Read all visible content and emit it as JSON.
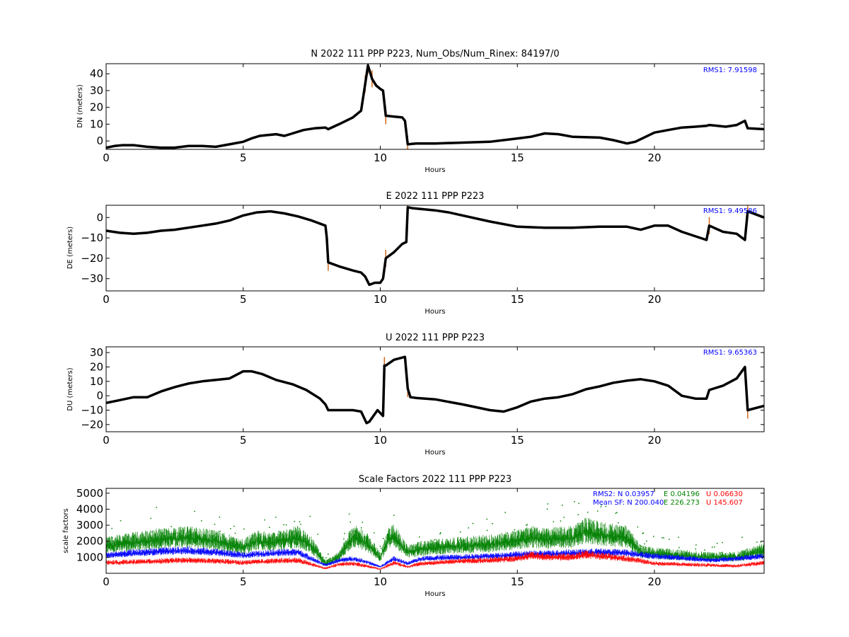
{
  "colors": {
    "data_point": "#000000",
    "outlier": "#d2691e",
    "rms_text": "#0000ff",
    "sf_N": "#0000ff",
    "sf_E": "#008000",
    "sf_U": "#ff0000"
  },
  "chart_data": [
    {
      "type": "scatter",
      "title": "N 2022 111 PPP  P223, Num_Obs/Num_Rinex: 84197/0",
      "xlabel": "Hours",
      "ylabel": "DN (meters)",
      "xlim": [
        0,
        24
      ],
      "ylim": [
        -5,
        46
      ],
      "xticks": [
        0,
        5,
        10,
        15,
        20
      ],
      "yticks": [
        0,
        10,
        20,
        30,
        40
      ],
      "grid": false,
      "annotation": "RMS1:  7.91598",
      "series": [
        {
          "x": [
            0,
            0.3,
            0.6,
            1.0,
            1.5,
            2.0,
            2.5,
            3.0,
            3.5,
            4.0,
            4.5,
            5.0,
            5.3,
            5.6,
            5.9,
            6.2,
            6.5,
            6.8,
            7.2,
            7.6,
            8.0,
            8.1,
            8.5,
            9.0,
            9.3,
            9.45,
            9.55,
            9.7,
            9.85,
            10.0,
            10.1,
            10.2,
            10.5,
            10.8,
            10.9,
            11.0,
            11.3,
            12.0,
            13.0,
            14.0,
            15.0,
            15.5,
            16.0,
            16.5,
            17.0,
            18.0,
            18.5,
            19.0,
            19.3,
            20.0,
            20.5,
            21.0,
            21.5,
            21.9,
            22.0,
            22.3,
            22.6,
            23.0,
            23.3,
            23.4,
            24.0
          ],
          "y": [
            -4,
            -3,
            -2.5,
            -2.5,
            -3.5,
            -4,
            -4,
            -3,
            -3,
            -3.5,
            -2,
            -0.5,
            1.5,
            3,
            3.5,
            4,
            3,
            4.5,
            6.5,
            7.5,
            8,
            7,
            10,
            14,
            18,
            34,
            45,
            37,
            33,
            31,
            30,
            15,
            14.5,
            14,
            12,
            -2,
            -1.5,
            -1.5,
            -1,
            -0.5,
            1.5,
            2.5,
            4.5,
            4,
            2.5,
            2,
            0.5,
            -1.5,
            -0.5,
            5,
            6.5,
            8,
            8.5,
            9,
            9.5,
            9,
            8.5,
            9.5,
            12,
            7.5,
            7
          ]
        }
      ]
    },
    {
      "type": "scatter",
      "title": "E 2022 111 PPP  P223",
      "xlabel": "Hours",
      "ylabel": "DE (meters)",
      "xlim": [
        0,
        24
      ],
      "ylim": [
        -36,
        6
      ],
      "xticks": [
        0,
        5,
        10,
        15,
        20
      ],
      "yticks": [
        -30,
        -20,
        -10,
        0
      ],
      "grid": false,
      "annotation": "RMS1:  9.49586",
      "series": [
        {
          "x": [
            0,
            0.5,
            1.0,
            1.5,
            2.0,
            2.5,
            3.0,
            3.5,
            4.0,
            4.5,
            5.0,
            5.5,
            6.0,
            6.5,
            7.0,
            7.5,
            8.0,
            8.05,
            8.1,
            8.5,
            9.0,
            9.3,
            9.45,
            9.6,
            9.8,
            10.0,
            10.1,
            10.2,
            10.5,
            10.8,
            10.95,
            11.0,
            11.2,
            12.0,
            12.5,
            13.0,
            14.0,
            15.0,
            16.0,
            17.0,
            18.0,
            19.0,
            19.5,
            20.0,
            20.5,
            21.0,
            21.9,
            22.0,
            22.5,
            23.0,
            23.3,
            23.4,
            24.0
          ],
          "y": [
            -6.5,
            -7.5,
            -8,
            -7.5,
            -6.5,
            -6,
            -5,
            -4,
            -3,
            -1.5,
            1,
            2.5,
            3,
            2,
            0.5,
            -1.5,
            -4,
            -10,
            -22,
            -24,
            -26,
            -27,
            -29,
            -33,
            -32,
            -32,
            -30,
            -20,
            -17,
            -13,
            -12,
            5,
            4.5,
            3.5,
            2.5,
            1,
            -2,
            -4.5,
            -5,
            -5,
            -4.5,
            -4.5,
            -6,
            -4,
            -4,
            -7,
            -11,
            -4,
            -7,
            -8,
            -11,
            3,
            0
          ]
        }
      ]
    },
    {
      "type": "scatter",
      "title": "U 2022 111 PPP  P223",
      "xlabel": "Hours",
      "ylabel": "DU (meters)",
      "xlim": [
        0,
        24
      ],
      "ylim": [
        -25,
        34
      ],
      "xticks": [
        0,
        5,
        10,
        15,
        20
      ],
      "yticks": [
        -20,
        -10,
        0,
        10,
        20,
        30
      ],
      "grid": false,
      "annotation": "RMS1:  9.65363",
      "series": [
        {
          "x": [
            0,
            0.5,
            1.0,
            1.5,
            2.0,
            2.5,
            3.0,
            3.5,
            4.0,
            4.5,
            5.0,
            5.3,
            5.7,
            6.2,
            6.8,
            7.3,
            7.8,
            8.0,
            8.1,
            8.5,
            9.0,
            9.3,
            9.5,
            9.6,
            9.9,
            10.0,
            10.1,
            10.15,
            10.2,
            10.5,
            10.9,
            11.0,
            11.1,
            11.3,
            12.0,
            13.0,
            14.0,
            14.5,
            15.0,
            15.5,
            16.0,
            16.5,
            17.0,
            17.5,
            18.0,
            18.5,
            19.0,
            19.5,
            20.0,
            20.5,
            21.0,
            21.5,
            21.9,
            22.0,
            22.5,
            23.0,
            23.3,
            23.4,
            24.0
          ],
          "y": [
            -5,
            -3,
            -1,
            -1,
            3,
            6,
            8.5,
            10,
            11,
            12,
            17,
            17,
            15,
            11,
            8,
            4,
            -2,
            -6,
            -10,
            -10,
            -10,
            -11,
            -19,
            -18,
            -10,
            -12,
            -14,
            21,
            21,
            25,
            27,
            5,
            -1,
            -1.5,
            -2.5,
            -6,
            -10,
            -11,
            -8,
            -4,
            -2,
            -1,
            1,
            4.5,
            6.5,
            9,
            10.5,
            11.5,
            10,
            7,
            0,
            -2,
            -2,
            4,
            7,
            12,
            20,
            -10,
            -7
          ]
        }
      ]
    },
    {
      "type": "scatter",
      "title": "Scale Factors 2022 111 PPP  P223",
      "xlabel": "Hours",
      "ylabel": "scale factors",
      "xlim": [
        0,
        24
      ],
      "ylim": [
        0,
        5300
      ],
      "xticks": [
        0,
        5,
        10,
        15,
        20
      ],
      "yticks": [
        1000,
        2000,
        3000,
        4000,
        5000
      ],
      "grid": false,
      "annotations": {
        "rms2_label": "RMS2: N  0.03957",
        "rms2_e": "E  0.04196",
        "rms2_u": "U  0.06630",
        "meansf_label": "Mean SF: N 200.040",
        "meansf_e": "E 226.273",
        "meansf_u": "U  145.607"
      },
      "series": [
        {
          "name": "E",
          "x": [
            0,
            1,
            2,
            3,
            4,
            5,
            5.5,
            6,
            7,
            7.5,
            8,
            8.5,
            9,
            9.5,
            10,
            10.3,
            10.5,
            11,
            11.5,
            12,
            13,
            14,
            15,
            15.5,
            16,
            17,
            17.5,
            18,
            18.5,
            19,
            19.5,
            20,
            21,
            22,
            23,
            24
          ],
          "y": [
            1700,
            1900,
            2100,
            2200,
            2000,
            1600,
            2000,
            1900,
            2200,
            1700,
            600,
            1000,
            2300,
            1900,
            1000,
            2100,
            2300,
            1300,
            1500,
            1600,
            1700,
            1800,
            2000,
            2200,
            2100,
            2200,
            2600,
            2400,
            2300,
            2200,
            1300,
            1200,
            1100,
            1000,
            1000,
            1400
          ]
        },
        {
          "name": "N",
          "x": [
            0,
            1,
            2,
            3,
            4,
            5,
            6,
            7,
            8,
            8.5,
            9,
            9.5,
            10,
            10.5,
            11,
            11.5,
            12,
            13,
            14,
            15,
            16,
            17,
            18,
            19,
            20,
            21,
            22,
            23,
            24
          ],
          "y": [
            1100,
            1250,
            1350,
            1400,
            1300,
            1100,
            1250,
            1300,
            500,
            800,
            900,
            700,
            400,
            900,
            600,
            900,
            950,
            1000,
            1050,
            1150,
            1200,
            1250,
            1300,
            1250,
            1050,
            950,
            800,
            900,
            1050
          ]
        },
        {
          "name": "U",
          "x": [
            0,
            1,
            2,
            3,
            4,
            5,
            6,
            7,
            8,
            8.5,
            9,
            9.5,
            10,
            10.5,
            11,
            11.5,
            12,
            13,
            14,
            15,
            15.5,
            16,
            17,
            17.5,
            18,
            19,
            20,
            21,
            22,
            23,
            24
          ],
          "y": [
            650,
            700,
            750,
            800,
            750,
            650,
            750,
            800,
            300,
            550,
            600,
            450,
            250,
            650,
            400,
            600,
            650,
            750,
            800,
            900,
            1100,
            1000,
            1000,
            1150,
            1050,
            900,
            600,
            550,
            500,
            450,
            650
          ]
        }
      ]
    }
  ]
}
